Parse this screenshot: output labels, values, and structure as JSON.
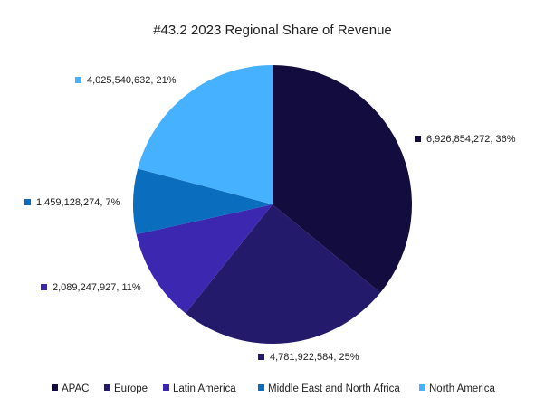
{
  "chart_data": {
    "type": "pie",
    "title": "#43.2 2023 Regional Share of Revenue",
    "categories": [
      "APAC",
      "Europe",
      "Latin America",
      "Middle East and North Africa",
      "North America"
    ],
    "values": [
      6926854272,
      4781922584,
      2089247927,
      1459128274,
      4025540632
    ],
    "percent_labels": [
      "36%",
      "25%",
      "11%",
      "7%",
      "21%"
    ],
    "value_labels": [
      "6,926,854,272",
      "4,781,922,584",
      "2,089,247,927",
      "1,459,128,274",
      "4,025,540,632"
    ],
    "colors": [
      "#130c3e",
      "#231a6b",
      "#3c28b0",
      "#0a6dbd",
      "#45b1ff"
    ],
    "start_angle_deg": 0,
    "direction": "clockwise",
    "legend_position": "bottom"
  }
}
